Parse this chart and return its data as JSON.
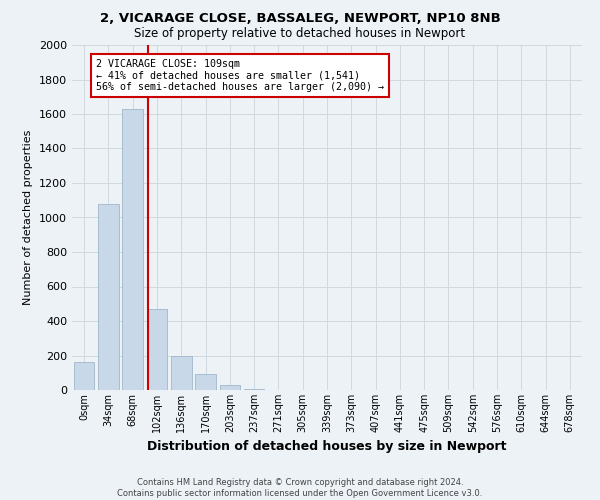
{
  "title_line1": "2, VICARAGE CLOSE, BASSALEG, NEWPORT, NP10 8NB",
  "title_line2": "Size of property relative to detached houses in Newport",
  "xlabel": "Distribution of detached houses by size in Newport",
  "ylabel": "Number of detached properties",
  "footnote": "Contains HM Land Registry data © Crown copyright and database right 2024.\nContains public sector information licensed under the Open Government Licence v3.0.",
  "bar_labels": [
    "0sqm",
    "34sqm",
    "68sqm",
    "102sqm",
    "136sqm",
    "170sqm",
    "203sqm",
    "237sqm",
    "271sqm",
    "305sqm",
    "339sqm",
    "373sqm",
    "407sqm",
    "441sqm",
    "475sqm",
    "509sqm",
    "542sqm",
    "576sqm",
    "610sqm",
    "644sqm",
    "678sqm"
  ],
  "bar_values": [
    160,
    1080,
    1630,
    470,
    200,
    90,
    30,
    5,
    0,
    0,
    0,
    0,
    0,
    0,
    0,
    0,
    0,
    0,
    0,
    0,
    0
  ],
  "bar_color": "#c8d8e8",
  "bar_edge_color": "#a0b8cc",
  "grid_color": "#d0d8e0",
  "vline_x": 2.62,
  "vline_color": "#cc0000",
  "annotation_text": "2 VICARAGE CLOSE: 109sqm\n← 41% of detached houses are smaller (1,541)\n56% of semi-detached houses are larger (2,090) →",
  "annotation_box_color": "#ffffff",
  "annotation_box_edge": "#cc0000",
  "ylim": [
    0,
    2000
  ],
  "yticks": [
    0,
    200,
    400,
    600,
    800,
    1000,
    1200,
    1400,
    1600,
    1800,
    2000
  ],
  "background_color": "#edf2f7"
}
